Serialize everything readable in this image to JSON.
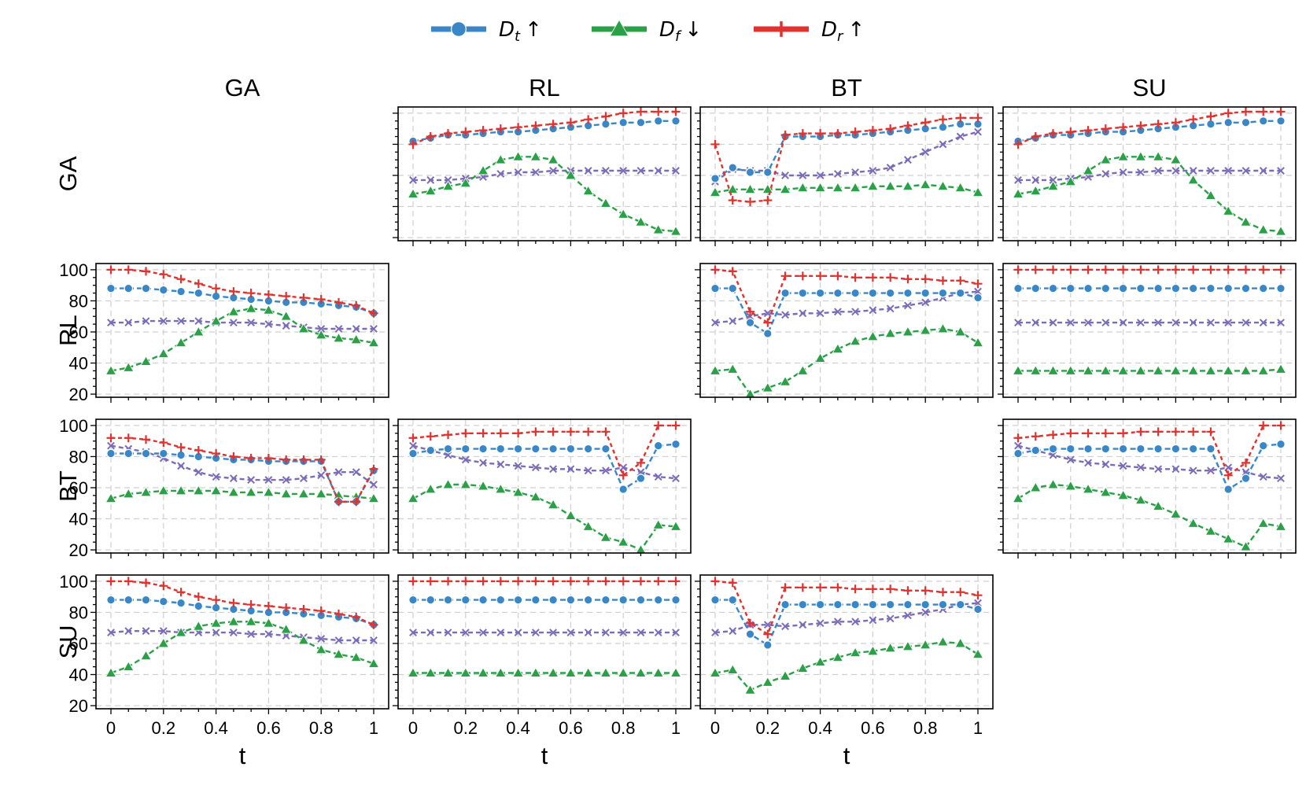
{
  "chart_data": {
    "type": "line",
    "row_labels": [
      "GA",
      "RL",
      "BT",
      "SU"
    ],
    "col_labels": [
      "GA",
      "RL",
      "BT",
      "SU"
    ],
    "xlabel": "t",
    "x": [
      0,
      0.0667,
      0.1333,
      0.2,
      0.2667,
      0.3333,
      0.4,
      0.4667,
      0.5333,
      0.6,
      0.6667,
      0.7333,
      0.8,
      0.8667,
      0.9333,
      1
    ],
    "xticks": [
      "0",
      "0.2",
      "0.4",
      "0.6",
      "0.8",
      "1"
    ],
    "ylim": [
      18,
      104
    ],
    "yticks": [
      "20",
      "40",
      "60",
      "80",
      "100"
    ],
    "grid": true,
    "legend": {
      "placement": "top-center",
      "entries": [
        {
          "base": "D",
          "sub": "t",
          "arrow": "↑",
          "series": "Dt"
        },
        {
          "base": "D",
          "sub": "f",
          "arrow": "↓",
          "series": "Df"
        },
        {
          "base": "D",
          "sub": "r",
          "arrow": "↑",
          "series": "Dr"
        }
      ]
    },
    "series_styles": {
      "Dt": {
        "color": "#3a87c8",
        "marker": "circle"
      },
      "Df": {
        "color": "#2ca048",
        "marker": "triangle"
      },
      "Dr": {
        "color": "#e03330",
        "marker": "plus"
      },
      "other": {
        "color": "#7b6bb8",
        "marker": "x"
      }
    },
    "panels": [
      {
        "row": "GA",
        "col": "RL",
        "series": {
          "Dt": [
            82,
            84,
            86,
            86,
            87,
            88,
            88,
            89,
            90,
            91,
            92,
            93,
            94,
            94,
            95,
            95
          ],
          "Df": [
            48,
            50,
            53,
            55,
            63,
            70,
            72,
            72,
            70,
            60,
            50,
            42,
            35,
            30,
            25,
            24
          ],
          "Dr": [
            80,
            85,
            87,
            88,
            89,
            90,
            91,
            92,
            93,
            94,
            96,
            98,
            100,
            101,
            101,
            101
          ],
          "other": [
            57,
            57,
            57,
            58,
            59,
            61,
            62,
            62,
            63,
            63,
            63,
            63,
            63,
            63,
            63,
            63
          ]
        }
      },
      {
        "row": "GA",
        "col": "BT",
        "series": {
          "Dt": [
            58,
            65,
            62,
            62,
            85,
            85,
            85,
            86,
            86,
            87,
            88,
            89,
            90,
            91,
            93,
            93
          ],
          "Df": [
            49,
            51,
            51,
            51,
            51,
            52,
            52,
            52,
            52,
            53,
            53,
            53,
            54,
            53,
            52,
            49
          ],
          "Dr": [
            80,
            44,
            43,
            44,
            86,
            87,
            87,
            87,
            88,
            89,
            90,
            92,
            94,
            96,
            97,
            97
          ],
          "other": [
            56,
            64,
            63,
            63,
            60,
            60,
            60,
            61,
            62,
            63,
            65,
            70,
            75,
            80,
            85,
            88
          ]
        }
      },
      {
        "row": "GA",
        "col": "SU",
        "series": {
          "Dt": [
            82,
            84,
            86,
            86,
            87,
            88,
            88,
            89,
            90,
            91,
            92,
            93,
            94,
            94,
            95,
            95
          ],
          "Df": [
            48,
            50,
            53,
            56,
            63,
            70,
            72,
            72,
            72,
            70,
            57,
            47,
            37,
            30,
            25,
            24
          ],
          "Dr": [
            80,
            85,
            87,
            88,
            89,
            90,
            91,
            92,
            93,
            94,
            96,
            98,
            100,
            101,
            101,
            101
          ],
          "other": [
            57,
            57,
            57,
            58,
            59,
            61,
            62,
            62,
            63,
            63,
            63,
            63,
            63,
            63,
            63,
            63
          ]
        }
      },
      {
        "row": "RL",
        "col": "GA",
        "series": {
          "Dt": [
            88,
            88,
            88,
            87,
            86,
            85,
            83,
            82,
            81,
            80,
            79,
            79,
            78,
            77,
            76,
            72
          ],
          "Df": [
            35,
            37,
            41,
            46,
            53,
            60,
            67,
            73,
            75,
            74,
            70,
            62,
            58,
            56,
            55,
            53
          ],
          "Dr": [
            100,
            100,
            99,
            97,
            94,
            91,
            88,
            86,
            85,
            84,
            83,
            82,
            81,
            79,
            77,
            72
          ],
          "other": [
            66,
            66,
            67,
            67,
            67,
            67,
            66,
            66,
            66,
            65,
            64,
            63,
            62,
            62,
            62,
            62
          ]
        }
      },
      {
        "row": "RL",
        "col": "BT",
        "series": {
          "Dt": [
            88,
            88,
            66,
            59,
            85,
            85,
            85,
            85,
            85,
            85,
            85,
            85,
            85,
            85,
            85,
            82
          ],
          "Df": [
            35,
            36,
            20,
            24,
            28,
            35,
            43,
            49,
            54,
            57,
            59,
            60,
            61,
            62,
            60,
            53
          ],
          "Dr": [
            100,
            99,
            73,
            66,
            96,
            96,
            96,
            96,
            95,
            95,
            95,
            94,
            94,
            93,
            93,
            91
          ],
          "other": [
            66,
            67,
            70,
            72,
            71,
            72,
            72,
            73,
            73,
            74,
            75,
            77,
            79,
            82,
            85,
            86
          ]
        }
      },
      {
        "row": "RL",
        "col": "SU",
        "series": {
          "Dt": [
            88,
            88,
            88,
            88,
            88,
            88,
            88,
            88,
            88,
            88,
            88,
            88,
            88,
            88,
            88,
            88
          ],
          "Df": [
            35,
            35,
            35,
            35,
            35,
            35,
            35,
            35,
            35,
            35,
            35,
            35,
            35,
            35,
            35,
            36
          ],
          "Dr": [
            100,
            100,
            100,
            100,
            100,
            100,
            100,
            100,
            100,
            100,
            100,
            100,
            100,
            100,
            100,
            100
          ],
          "other": [
            66,
            66,
            66,
            66,
            66,
            66,
            66,
            66,
            66,
            66,
            66,
            66,
            66,
            66,
            66,
            66
          ]
        }
      },
      {
        "row": "BT",
        "col": "GA",
        "series": {
          "Dt": [
            82,
            82,
            82,
            82,
            81,
            80,
            79,
            78,
            78,
            77,
            77,
            77,
            77,
            51,
            51,
            71
          ],
          "Df": [
            53,
            56,
            57,
            58,
            58,
            58,
            58,
            57,
            57,
            57,
            56,
            56,
            56,
            55,
            54,
            53
          ],
          "Dr": [
            92,
            92,
            91,
            89,
            86,
            84,
            82,
            80,
            79,
            79,
            78,
            78,
            78,
            51,
            51,
            72
          ],
          "other": [
            87,
            85,
            83,
            79,
            74,
            70,
            67,
            66,
            65,
            65,
            65,
            66,
            68,
            70,
            70,
            62
          ]
        }
      },
      {
        "row": "BT",
        "col": "RL",
        "series": {
          "Dt": [
            82,
            84,
            85,
            85,
            85,
            85,
            85,
            85,
            85,
            85,
            85,
            85,
            59,
            66,
            87,
            88
          ],
          "Df": [
            53,
            59,
            62,
            62,
            61,
            59,
            57,
            54,
            49,
            42,
            35,
            28,
            25,
            20,
            36,
            35
          ],
          "Dr": [
            92,
            93,
            94,
            95,
            95,
            95,
            95,
            96,
            96,
            96,
            96,
            96,
            68,
            76,
            100,
            100
          ],
          "other": [
            87,
            84,
            81,
            78,
            76,
            75,
            74,
            73,
            72,
            72,
            71,
            71,
            73,
            70,
            67,
            66
          ]
        }
      },
      {
        "row": "BT",
        "col": "SU",
        "series": {
          "Dt": [
            82,
            84,
            85,
            85,
            85,
            85,
            85,
            85,
            85,
            85,
            85,
            85,
            59,
            66,
            87,
            88
          ],
          "Df": [
            53,
            60,
            62,
            61,
            59,
            57,
            55,
            52,
            48,
            43,
            37,
            32,
            27,
            22,
            37,
            35
          ],
          "Dr": [
            92,
            93,
            94,
            95,
            95,
            95,
            95,
            96,
            96,
            96,
            96,
            96,
            68,
            76,
            100,
            100
          ],
          "other": [
            87,
            84,
            81,
            78,
            76,
            75,
            74,
            73,
            72,
            72,
            71,
            71,
            73,
            70,
            67,
            66
          ]
        }
      },
      {
        "row": "SU",
        "col": "GA",
        "series": {
          "Dt": [
            88,
            88,
            88,
            87,
            86,
            84,
            83,
            82,
            81,
            80,
            80,
            79,
            78,
            77,
            76,
            72
          ],
          "Df": [
            41,
            45,
            52,
            60,
            67,
            71,
            73,
            74,
            74,
            73,
            69,
            62,
            56,
            53,
            51,
            47
          ],
          "Dr": [
            100,
            100,
            99,
            97,
            93,
            90,
            88,
            86,
            85,
            84,
            83,
            82,
            81,
            79,
            77,
            72
          ],
          "other": [
            67,
            68,
            68,
            68,
            67,
            67,
            67,
            67,
            66,
            66,
            65,
            64,
            63,
            62,
            62,
            62
          ]
        }
      },
      {
        "row": "SU",
        "col": "RL",
        "series": {
          "Dt": [
            88,
            88,
            88,
            88,
            88,
            88,
            88,
            88,
            88,
            88,
            88,
            88,
            88,
            88,
            88,
            88
          ],
          "Df": [
            41,
            41,
            41,
            41,
            41,
            41,
            41,
            41,
            41,
            41,
            41,
            41,
            41,
            41,
            41,
            41
          ],
          "Dr": [
            100,
            100,
            100,
            100,
            100,
            100,
            100,
            100,
            100,
            100,
            100,
            100,
            100,
            100,
            100,
            100
          ],
          "other": [
            67,
            67,
            67,
            67,
            67,
            67,
            67,
            67,
            67,
            67,
            67,
            67,
            67,
            67,
            67,
            67
          ]
        }
      },
      {
        "row": "SU",
        "col": "BT",
        "series": {
          "Dt": [
            88,
            88,
            66,
            59,
            85,
            85,
            85,
            85,
            85,
            85,
            85,
            85,
            85,
            85,
            85,
            82
          ],
          "Df": [
            41,
            43,
            30,
            35,
            39,
            44,
            48,
            51,
            54,
            55,
            57,
            58,
            59,
            61,
            60,
            53
          ],
          "Dr": [
            100,
            99,
            73,
            66,
            96,
            96,
            96,
            96,
            95,
            95,
            95,
            94,
            94,
            93,
            93,
            91
          ],
          "other": [
            67,
            68,
            72,
            72,
            71,
            72,
            73,
            74,
            74,
            75,
            76,
            78,
            80,
            82,
            85,
            86
          ]
        }
      }
    ]
  }
}
